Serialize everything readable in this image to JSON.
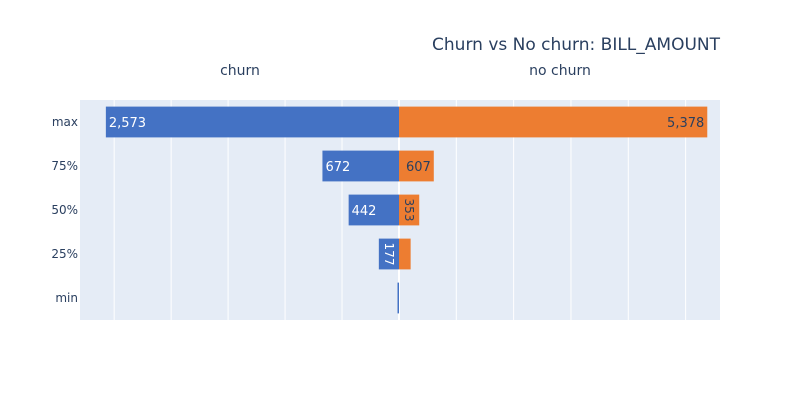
{
  "chart_data": {
    "type": "bar",
    "orientation": "horizontal",
    "layout": "mirrored-subplots",
    "title": "Churn vs No churn: BILL_AMOUNT",
    "categories": [
      "max",
      "75%",
      "50%",
      "25%",
      "min"
    ],
    "series": [
      {
        "name": "churn",
        "values": [
          2573,
          672,
          442,
          177,
          2
        ],
        "labels": [
          "2,573",
          "672",
          "442",
          "177",
          ""
        ],
        "label_rotated": [
          false,
          false,
          false,
          true,
          false
        ],
        "color": "#4472c4",
        "xlim": [
          2800,
          0
        ]
      },
      {
        "name": "no churn",
        "values": [
          5378,
          607,
          353,
          203,
          0
        ],
        "labels": [
          "5,378",
          "607",
          "353",
          "",
          ""
        ],
        "label_rotated": [
          false,
          false,
          true,
          false,
          false
        ],
        "color": "#ed7d31",
        "xlim": [
          0,
          5600
        ]
      }
    ],
    "grid": true,
    "plot_background": "#e5ecf6",
    "legend": "none"
  }
}
